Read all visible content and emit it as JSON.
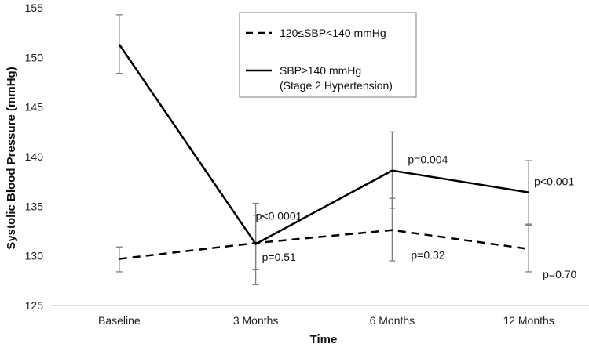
{
  "chart_data": {
    "type": "line",
    "title": "",
    "xlabel": "Time",
    "ylabel": "Systolic Blood Pressure (mmHg)",
    "categories": [
      "Baseline",
      "3 Months",
      "6 Months",
      "12 Months"
    ],
    "ylim": [
      125,
      155
    ],
    "yticks": [
      125,
      130,
      135,
      140,
      145,
      150,
      155
    ],
    "grid": false,
    "legend_position": "top-center",
    "series": [
      {
        "name": "120≤SBP<140 mmHg",
        "style": "dashed",
        "values": [
          129.7,
          131.3,
          132.6,
          130.7
        ],
        "error_low": [
          128.4,
          128.6,
          129.5,
          128.4
        ],
        "error_high": [
          130.9,
          134.1,
          135.8,
          133.1
        ],
        "annotations": [
          "",
          "p=0.51",
          "p=0.32",
          "p=0.70"
        ]
      },
      {
        "name": "SBP≥140 mmHg",
        "name_line2": "(Stage 2 Hypertension)",
        "style": "solid",
        "values": [
          151.3,
          131.2,
          138.6,
          136.4
        ],
        "error_low": [
          148.4,
          127.1,
          134.8,
          133.2
        ],
        "error_high": [
          154.3,
          135.3,
          142.5,
          139.6
        ],
        "annotations": [
          "",
          "p<0.0001",
          "p=0.004",
          "p<0.001"
        ]
      }
    ],
    "colors": {
      "line": "#000000",
      "error_bar": "#7f7f7f",
      "axis": "#bfbfbf",
      "legend_border": "#7f7f7f"
    }
  }
}
